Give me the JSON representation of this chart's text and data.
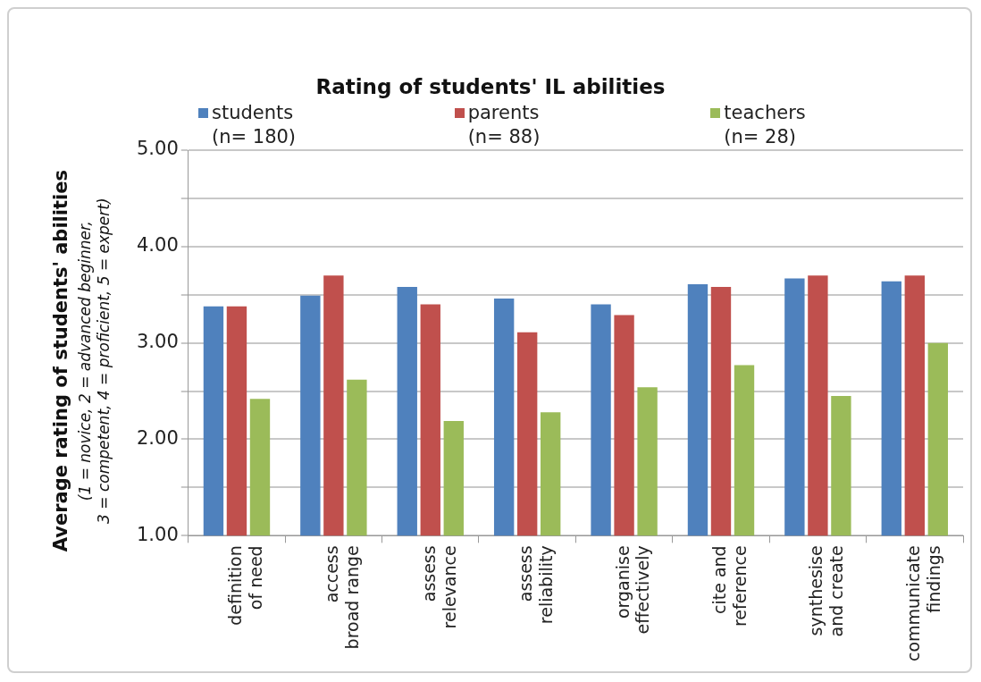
{
  "chart_data": {
    "type": "bar",
    "title": "Rating of students' IL abilities",
    "ylabel": "Average rating of students' abilities\n(1 = novice, 2 = advanced beginner,\n3 = competent, 4 = proficient, 5 = expert)",
    "categories": [
      "definition\nof need",
      "access\nbroad range",
      "assess\nrelevance",
      "assess\nreliability",
      "organise\neffectively",
      "cite and\nreference",
      "synthesise\nand create",
      "communicate\nfindings"
    ],
    "series": [
      {
        "name": "students\n(n= 180)",
        "color": "#4f81bd",
        "values": [
          3.38,
          3.49,
          3.58,
          3.46,
          3.4,
          3.61,
          3.67,
          3.64
        ]
      },
      {
        "name": "parents\n(n= 88)",
        "color": "#c0504d",
        "values": [
          3.38,
          3.7,
          3.4,
          3.11,
          3.29,
          3.58,
          3.7,
          3.7
        ]
      },
      {
        "name": "teachers\n(n= 28)",
        "color": "#9bbb59",
        "values": [
          2.42,
          2.62,
          2.19,
          2.28,
          2.54,
          2.77,
          2.45,
          3.0
        ]
      }
    ],
    "ylim": [
      1,
      5
    ],
    "yticks": [
      {
        "value": 1,
        "label": "1.00"
      },
      {
        "value": 1.5,
        "label": null
      },
      {
        "value": 2,
        "label": "2.00"
      },
      {
        "value": 2.5,
        "label": null
      },
      {
        "value": 3,
        "label": "3.00"
      },
      {
        "value": 3.5,
        "label": null
      },
      {
        "value": 4,
        "label": "4.00"
      },
      {
        "value": 4.5,
        "label": null
      },
      {
        "value": 5,
        "label": "5.00"
      }
    ],
    "grid": "y",
    "legend": "top"
  }
}
